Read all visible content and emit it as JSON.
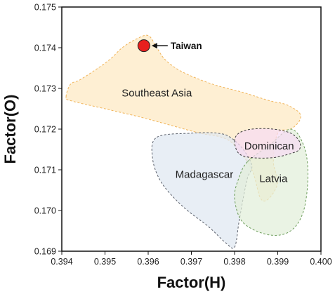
{
  "chart_data": {
    "type": "scatter",
    "title": "",
    "xlabel": "Factor(H)",
    "ylabel": "Factor(O)",
    "xlim": [
      0.394,
      0.4
    ],
    "ylim": [
      0.169,
      0.175
    ],
    "x_ticks": [
      "0.394",
      "0.395",
      "0.396",
      "0.397",
      "0.398",
      "0.399",
      "0.400"
    ],
    "y_ticks": [
      "0.169",
      "0.170",
      "0.171",
      "0.172",
      "0.173",
      "0.174",
      "0.175"
    ],
    "grid": false,
    "points": [
      {
        "label": "Taiwan",
        "x": 0.3959,
        "y": 0.17405,
        "color": "#e8201e"
      }
    ],
    "regions": [
      {
        "name": "Southeast Asia",
        "fill": "#fde9c2",
        "stroke": "#f0b45a",
        "label_pos": [
          0.3962,
          0.1728
        ],
        "polygon": [
          [
            0.3941,
            0.1728
          ],
          [
            0.3942,
            0.1731
          ],
          [
            0.3944,
            0.1732
          ],
          [
            0.3947,
            0.1734
          ],
          [
            0.3951,
            0.1737
          ],
          [
            0.3954,
            0.174
          ],
          [
            0.3957,
            0.1742
          ],
          [
            0.396,
            0.1743
          ],
          [
            0.3962,
            0.174
          ],
          [
            0.3964,
            0.1737
          ],
          [
            0.3968,
            0.1734
          ],
          [
            0.3975,
            0.1731
          ],
          [
            0.3982,
            0.1729
          ],
          [
            0.3988,
            0.1727
          ],
          [
            0.3992,
            0.1726
          ],
          [
            0.3995,
            0.1724
          ],
          [
            0.3995,
            0.1722
          ],
          [
            0.3993,
            0.172
          ],
          [
            0.399,
            0.1719
          ],
          [
            0.3989,
            0.1712
          ],
          [
            0.399,
            0.1707
          ],
          [
            0.3988,
            0.1703
          ],
          [
            0.3986,
            0.1703
          ],
          [
            0.3984,
            0.171
          ],
          [
            0.398,
            0.1716
          ],
          [
            0.3977,
            0.1718
          ],
          [
            0.3972,
            0.1719
          ],
          [
            0.3965,
            0.1721
          ],
          [
            0.3958,
            0.1723
          ],
          [
            0.395,
            0.1725
          ],
          [
            0.3942,
            0.1727
          ]
        ]
      },
      {
        "name": "Madagascar",
        "fill": "#dfe7f1",
        "stroke": "#5a5f6a",
        "label_pos": [
          0.3973,
          0.1708
        ],
        "polygon": [
          [
            0.3962,
            0.1718
          ],
          [
            0.397,
            0.1719
          ],
          [
            0.3976,
            0.1719
          ],
          [
            0.3979,
            0.1718
          ],
          [
            0.3982,
            0.1715
          ],
          [
            0.3984,
            0.1711
          ],
          [
            0.3983,
            0.1708
          ],
          [
            0.3982,
            0.1703
          ],
          [
            0.3981,
            0.1697
          ],
          [
            0.398,
            0.1691
          ],
          [
            0.3978,
            0.1692
          ],
          [
            0.3974,
            0.1696
          ],
          [
            0.3968,
            0.1701
          ],
          [
            0.3963,
            0.1707
          ],
          [
            0.3961,
            0.1713
          ]
        ]
      },
      {
        "name": "Latvia",
        "fill": "#e2eed9",
        "stroke": "#6c9c5a",
        "label_pos": [
          0.3989,
          0.1707
        ],
        "polygon": [
          [
            0.3983,
            0.1712
          ],
          [
            0.3988,
            0.1716
          ],
          [
            0.3993,
            0.172
          ],
          [
            0.3996,
            0.1716
          ],
          [
            0.3997,
            0.1709
          ],
          [
            0.3996,
            0.17
          ],
          [
            0.3993,
            0.1695
          ],
          [
            0.3988,
            0.1694
          ],
          [
            0.3982,
            0.1697
          ],
          [
            0.398,
            0.1703
          ],
          [
            0.3981,
            0.1708
          ]
        ]
      },
      {
        "name": "Dominican",
        "fill": "#f6dbf3",
        "stroke": "#3a3a3a",
        "label_pos": [
          0.3988,
          0.1715
        ],
        "polygon": [
          [
            0.398,
            0.1717
          ],
          [
            0.3981,
            0.1719
          ],
          [
            0.3984,
            0.172
          ],
          [
            0.3989,
            0.172
          ],
          [
            0.3993,
            0.1719
          ],
          [
            0.3995,
            0.1717
          ],
          [
            0.3995,
            0.1715
          ],
          [
            0.3993,
            0.1714
          ],
          [
            0.3989,
            0.1713
          ],
          [
            0.3984,
            0.1713
          ],
          [
            0.3981,
            0.1714
          ]
        ]
      }
    ]
  }
}
